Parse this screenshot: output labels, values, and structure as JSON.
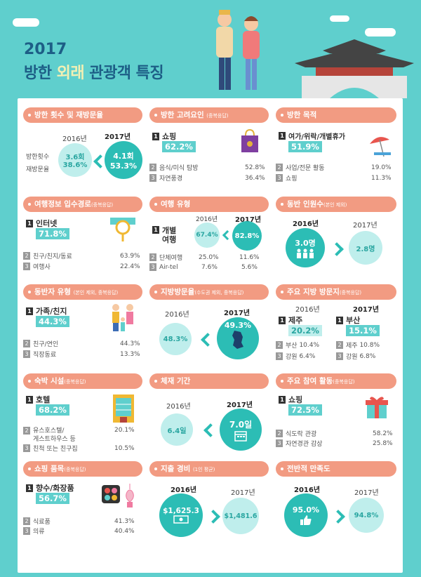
{
  "title": {
    "year": "2017",
    "line_prefix": "방한 ",
    "line_highlight": "외래",
    "line_suffix": " 관광객 특징"
  },
  "cards": {
    "frequency": {
      "header": "방한 횟수 및 재방문율",
      "year_2016": "2016년",
      "year_2017": "2017년",
      "label_visits": "방한횟수",
      "label_revisit": "재방문율",
      "v2016_visits": "3.6회",
      "v2016_revisit": "38.6%",
      "v2017_visits": "4.1회",
      "v2017_revisit": "53.3%"
    },
    "factors": {
      "header": "방한 고려요인",
      "header_note": "(중복응답)",
      "r1": "쇼핑",
      "r1_pct": "62.2%",
      "r2": "음식/미식 탐방",
      "r2_pct": "52.8%",
      "r3": "자연풍경",
      "r3_pct": "36.4%"
    },
    "purpose": {
      "header": "방한 목적",
      "r1": "여가/위락/개별휴가",
      "r1_pct": "51.9%",
      "r2": "사업/전문 활동",
      "r2_pct": "19.0%",
      "r3": "쇼핑",
      "r3_pct": "11.3%"
    },
    "info": {
      "header": "여행정보 입수경로",
      "header_note": "(중복응답)",
      "r1": "인터넷",
      "r1_pct": "71.8%",
      "r2": "친구/친지/동료",
      "r2_pct": "63.9%",
      "r3": "여행사",
      "r3_pct": "22.4%"
    },
    "travel_type": {
      "header": "여행 유형",
      "year_2016": "2016년",
      "year_2017": "2017년",
      "r1": "개별여행",
      "r1_2016": "67.4%",
      "r1_2017": "82.8%",
      "r2": "단체여행",
      "r2_2016": "25.0%",
      "r2_2017": "11.6%",
      "r3": "Air-tel",
      "r3_2016": "7.6%",
      "r3_2017": "5.6%"
    },
    "companions": {
      "header": "동반 인원수",
      "header_note": "(본인 제외)",
      "year_2016": "2016년",
      "year_2017": "2017년",
      "v2016": "3.0명",
      "v2017": "2.8명"
    },
    "companion_type": {
      "header": "동반자 유형",
      "header_note": "(본인 제외, 중복응답)",
      "r1": "가족/친지",
      "r1_pct": "44.3%",
      "r2": "친구/연인",
      "r2_pct": "44.3%",
      "r3": "직장동료",
      "r3_pct": "13.3%"
    },
    "region_rate": {
      "header": "지방방문율",
      "header_note": "(수도권 제외, 중복응답)",
      "year_2016": "2016년",
      "year_2017": "2017년",
      "v2016": "48.3%",
      "v2017": "49.3%"
    },
    "regions": {
      "header": "주요 지방 방문지",
      "header_note": "(중복응답)",
      "year_2016": "2016년",
      "year_2017": "2017년",
      "a1": "제주",
      "a1_pct": "20.2%",
      "a2": "부산",
      "a2_pct": "10.4%",
      "a3": "강원",
      "a3_pct": "6.4%",
      "b1": "부산",
      "b1_pct": "15.1%",
      "b2": "제주",
      "b2_pct": "10.8%",
      "b3": "강원",
      "b3_pct": "6.8%"
    },
    "lodging": {
      "header": "숙박 시설",
      "header_note": "(중복응답)",
      "r1": "호텔",
      "r1_pct": "68.2%",
      "r2a": "유스호스텔/",
      "r2b": "게스트하우스 등",
      "r2_pct": "20.1%",
      "r3": "친척 또는 친구집",
      "r3_pct": "10.5%"
    },
    "stay": {
      "header": "체재 기간",
      "year_2016": "2016년",
      "year_2017": "2017년",
      "v2016": "6.4일",
      "v2017": "7.0일"
    },
    "activities": {
      "header": "주요 참여 활동",
      "header_note": "(중복응답)",
      "r1": "쇼핑",
      "r1_pct": "72.5%",
      "r2": "식도락 관광",
      "r2_pct": "58.2%",
      "r3": "자연경관 감상",
      "r3_pct": "25.8%"
    },
    "shopping": {
      "header": "쇼핑 품목",
      "header_note": "(중복응답)",
      "r1": "향수/화장품",
      "r1_pct": "56.7%",
      "r2": "식료품",
      "r2_pct": "41.3%",
      "r3": "의류",
      "r3_pct": "40.4%"
    },
    "spending": {
      "header": "지출 경비",
      "header_note": "(1인 평균)",
      "year_2016": "2016년",
      "year_2017": "2017년",
      "v2016": "$1,625.3",
      "v2017": "$1,481.6"
    },
    "satisfaction": {
      "header": "전반적 만족도",
      "year_2016": "2016년",
      "year_2017": "2017년",
      "v2016": "95.0%",
      "v2017": "94.8%"
    }
  },
  "rank_numbers": {
    "one": "1",
    "two": "2",
    "three": "3"
  },
  "colors": {
    "background": "#5fcfcd",
    "header": "#f29b82",
    "accent": "#2cbdb5",
    "title": "#1d5e86"
  }
}
